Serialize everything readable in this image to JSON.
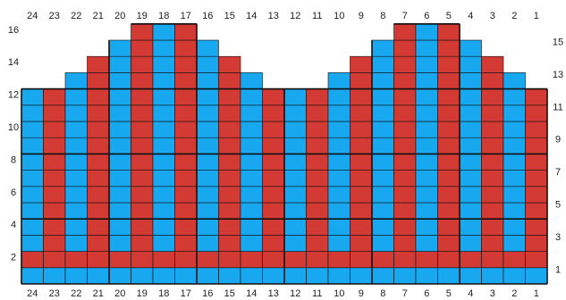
{
  "colors": {
    "red": "#d43a34",
    "blue": "#18a8ef",
    "grid_line": "#111111",
    "background": "#ffffff",
    "label": "#222222"
  },
  "grid": {
    "columns": 24,
    "rows": 16,
    "column_numbering": "right-to-left",
    "row_numbering": "bottom-to-top",
    "column_labels": [
      "1",
      "2",
      "3",
      "4",
      "5",
      "6",
      "7",
      "8",
      "9",
      "10",
      "11",
      "12",
      "13",
      "14",
      "15",
      "16",
      "17",
      "18",
      "19",
      "20",
      "21",
      "22",
      "23",
      "24"
    ],
    "row_labels_left": [
      "2",
      "4",
      "6",
      "8",
      "10",
      "12",
      "14",
      "16"
    ],
    "row_labels_right": [
      "1",
      "3",
      "5",
      "7",
      "9",
      "11",
      "13",
      "15"
    ],
    "column_heights": [
      12,
      13,
      14,
      15,
      16,
      16,
      16,
      15,
      14,
      13,
      12,
      12,
      12,
      13,
      14,
      15,
      16,
      16,
      16,
      15,
      14,
      13,
      12,
      12
    ],
    "column_color_pattern": [
      "red",
      "blue",
      "red",
      "blue",
      "red",
      "blue",
      "red",
      "blue",
      "red",
      "blue",
      "red",
      "blue",
      "red",
      "blue",
      "red",
      "blue",
      "red",
      "blue",
      "red",
      "blue",
      "red",
      "blue",
      "red",
      "blue"
    ],
    "row1_color": "blue",
    "row2_color": "red"
  }
}
